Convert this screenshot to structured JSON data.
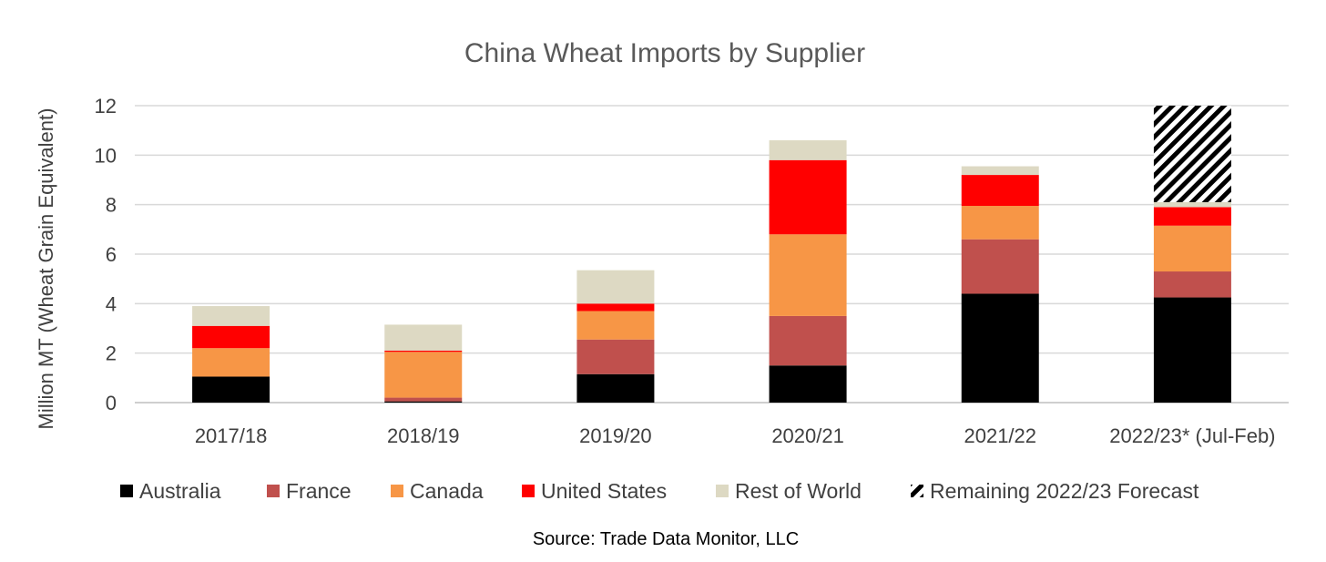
{
  "chart_data": {
    "type": "bar",
    "stacked": true,
    "title": "China Wheat Imports by Supplier",
    "ylabel": "Million MT (Wheat Grain Equivalent)",
    "xlabel": "",
    "ylim": [
      0,
      12
    ],
    "yticks": [
      0,
      2,
      4,
      6,
      8,
      10,
      12
    ],
    "grid": true,
    "legend_position": "bottom",
    "categories": [
      "2017/18",
      "2018/19",
      "2019/20",
      "2020/21",
      "2021/22",
      "2022/23* (Jul-Feb)"
    ],
    "series": [
      {
        "name": "Australia",
        "color": "#000000",
        "pattern": "solid",
        "values": [
          1.05,
          0.05,
          1.15,
          1.5,
          4.4,
          4.25
        ]
      },
      {
        "name": "France",
        "color": "#c0504d",
        "pattern": "solid",
        "values": [
          0.0,
          0.15,
          1.4,
          2.0,
          2.2,
          1.05
        ]
      },
      {
        "name": "Canada",
        "color": "#f79646",
        "pattern": "solid",
        "values": [
          1.15,
          1.85,
          1.15,
          3.3,
          1.35,
          1.85
        ]
      },
      {
        "name": "United States",
        "color": "#ff0000",
        "pattern": "solid",
        "values": [
          0.9,
          0.05,
          0.3,
          3.0,
          1.25,
          0.75
        ]
      },
      {
        "name": "Rest of World",
        "color": "#ddd9c3",
        "pattern": "solid",
        "values": [
          0.8,
          1.05,
          1.35,
          0.8,
          0.35,
          0.2
        ]
      },
      {
        "name": "Remaining 2022/23 Forecast",
        "color": "#000000",
        "pattern": "hatch",
        "values": [
          0,
          0,
          0,
          0,
          0,
          3.9
        ]
      }
    ],
    "source": "Source: Trade Data Monitor, LLC"
  }
}
